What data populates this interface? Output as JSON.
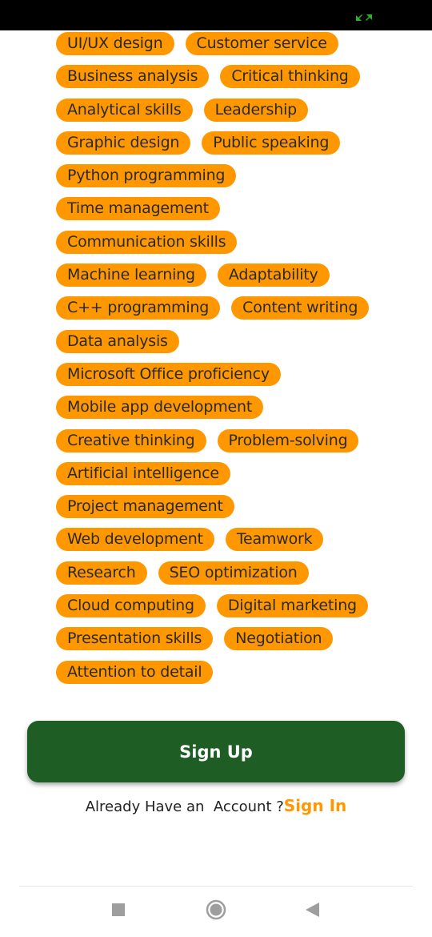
{
  "status_bar": {
    "indicator_icon": "screen-expand-icon",
    "indicator_color": "#2BB32B"
  },
  "skills": [
    [
      "UI/UX design",
      "Customer service"
    ],
    [
      "Business analysis",
      "Critical thinking"
    ],
    [
      "Analytical skills",
      "Leadership"
    ],
    [
      "Graphic design",
      "Public speaking"
    ],
    [
      "Python programming"
    ],
    [
      "Time management"
    ],
    [
      "Communication skills"
    ],
    [
      "Machine learning",
      "Adaptability"
    ],
    [
      "C++ programming",
      "Content writing"
    ],
    [
      "Data analysis"
    ],
    [
      "Microsoft Office proficiency"
    ],
    [
      "Mobile app development"
    ],
    [
      "Creative thinking",
      "Problem-solving"
    ],
    [
      "Artificial intelligence"
    ],
    [
      "Project management"
    ],
    [
      "Web development",
      "Teamwork"
    ],
    [
      "Research",
      "SEO optimization"
    ],
    [
      "Cloud computing",
      "Digital marketing"
    ],
    [
      "Presentation skills",
      "Negotiation"
    ],
    [
      "Attention to detail"
    ]
  ],
  "signup": {
    "label": "Sign Up"
  },
  "signin": {
    "prompt": "Already Have an  Account ?",
    "link": "Sign In"
  },
  "nav": {
    "recent_icon": "square-recent-apps-icon",
    "home_icon": "circle-home-icon",
    "back_icon": "triangle-back-icon"
  },
  "colors": {
    "chip_bg": "#FF9800",
    "primary_button": "#1E5E24",
    "link": "#FF9800",
    "status_bar": "#000000"
  }
}
